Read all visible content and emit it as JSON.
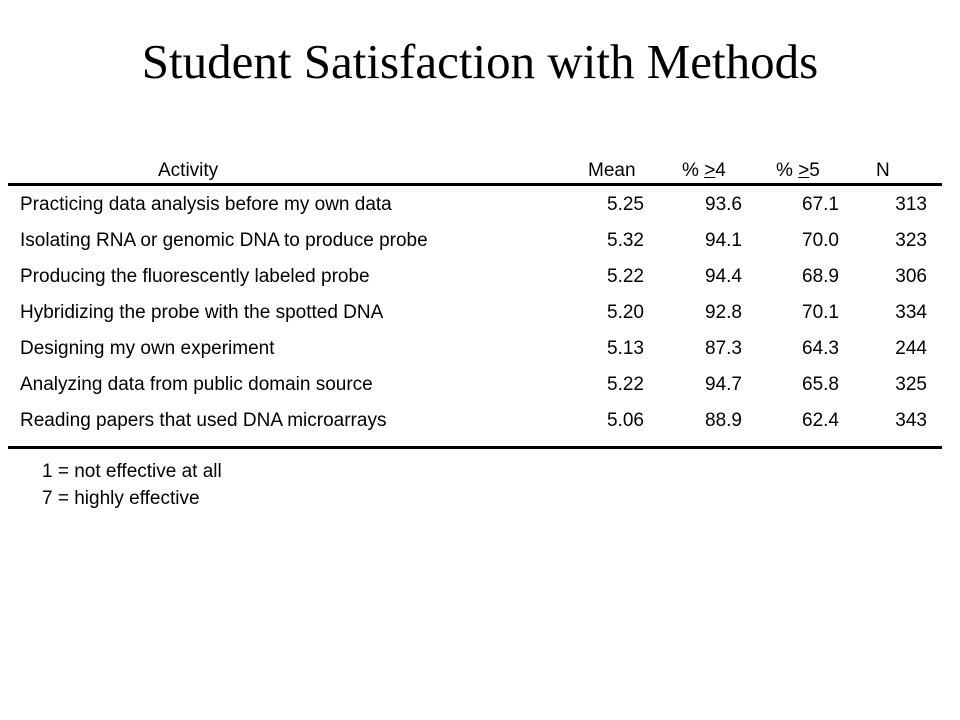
{
  "slide": {
    "title": "Student Satisfaction with Methods"
  },
  "table": {
    "headers": {
      "activity": "Activity",
      "mean": "Mean",
      "pct4_prefix": "% ",
      "pct4_sym": ">",
      "pct4_num": "4",
      "pct5_prefix": "% ",
      "pct5_sym": ">",
      "pct5_num": "5",
      "n": "N"
    },
    "rows": [
      {
        "activity": "Practicing data analysis before my own data",
        "mean": "5.25",
        "pct4": "93.6",
        "pct5": "67.1",
        "n": "313"
      },
      {
        "activity": "Isolating RNA or genomic DNA to produce probe",
        "mean": "5.32",
        "pct4": "94.1",
        "pct5": "70.0",
        "n": "323"
      },
      {
        "activity": "Producing the fluorescently labeled probe",
        "mean": "5.22",
        "pct4": "94.4",
        "pct5": "68.9",
        "n": "306"
      },
      {
        "activity": "Hybridizing the probe with the spotted DNA",
        "mean": "5.20",
        "pct4": "92.8",
        "pct5": "70.1",
        "n": "334"
      },
      {
        "activity": "Designing my own experiment",
        "mean": "5.13",
        "pct4": "87.3",
        "pct5": "64.3",
        "n": "244"
      },
      {
        "activity": "Analyzing data from public domain source",
        "mean": "5.22",
        "pct4": "94.7",
        "pct5": "65.8",
        "n": "325"
      },
      {
        "activity": "Reading papers that used DNA microarrays",
        "mean": "5.06",
        "pct4": "88.9",
        "pct5": "62.4",
        "n": "343"
      }
    ]
  },
  "legend": {
    "line1": "1 = not effective at all",
    "line2": "7 = highly effective"
  }
}
